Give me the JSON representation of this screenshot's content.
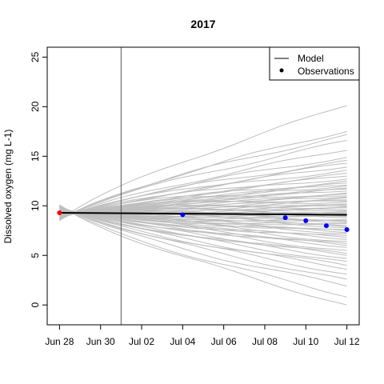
{
  "chart_data": {
    "type": "line",
    "title": "2017",
    "xlabel": "",
    "ylabel": "Dissolved oxygen (mg L-1)",
    "x_ticks": [
      "Jun 28",
      "Jun 30",
      "Jul 02",
      "Jul 04",
      "Jul 06",
      "Jul 08",
      "Jul 10",
      "Jul 12"
    ],
    "x_tick_days": [
      0,
      2,
      4,
      6,
      8,
      10,
      12,
      14
    ],
    "xlim": [
      -0.6,
      14.6
    ],
    "ylim": [
      -2,
      26
    ],
    "y_ticks": [
      0,
      5,
      10,
      15,
      20,
      25
    ],
    "grid": false,
    "legend": {
      "position": "top-right",
      "entries": [
        {
          "label": "Model",
          "symbol": "line"
        },
        {
          "label": "Observations",
          "symbol": "point"
        }
      ]
    },
    "vertical_line_day": 3,
    "model_mean": {
      "name": "Model",
      "color": "#000000",
      "x": [
        0,
        14
      ],
      "y": [
        9.3,
        9.1
      ]
    },
    "ensemble": {
      "color": "#bebebe",
      "start_day": 0,
      "end_day": 14,
      "start_y": 9.3,
      "end_y": [
        20.1,
        17.5,
        17.2,
        16.6,
        15.6,
        14.9,
        14.6,
        14.3,
        13.9,
        13.6,
        13.3,
        13.0,
        12.7,
        12.5,
        12.3,
        12.1,
        12.0,
        11.8,
        11.7,
        11.5,
        11.3,
        11.2,
        11.0,
        10.9,
        10.8,
        10.6,
        10.5,
        10.4,
        10.2,
        10.1,
        10.0,
        9.9,
        9.8,
        9.6,
        9.5,
        9.4,
        9.3,
        9.2,
        9.1,
        9.0,
        8.9,
        8.8,
        8.6,
        8.5,
        8.4,
        8.3,
        8.2,
        8.0,
        7.9,
        7.8,
        7.6,
        7.5,
        7.3,
        7.2,
        7.0,
        6.8,
        6.6,
        6.4,
        6.2,
        6.0,
        5.8,
        5.5,
        5.2,
        5.0,
        4.7,
        4.4,
        4.0,
        3.6,
        3.1,
        2.6,
        1.9,
        0.8,
        0.0
      ]
    },
    "observations": {
      "name": "Observations",
      "color": "#0000ff",
      "x": [
        6,
        11,
        12,
        13,
        14
      ],
      "y": [
        9.1,
        8.8,
        8.5,
        8.0,
        7.6
      ]
    },
    "initial_point": {
      "color": "#ff0000",
      "x": 0,
      "y": 9.3
    }
  }
}
